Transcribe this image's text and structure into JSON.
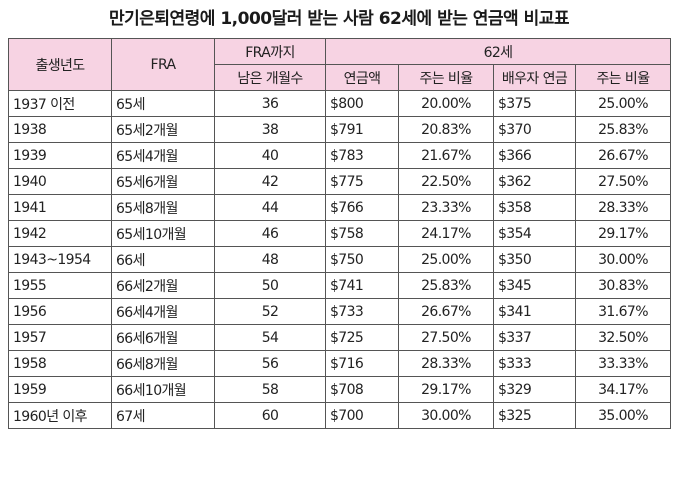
{
  "title": "만기은퇴연령에 1,000달러 받는 사람 62세에 받는 연금액 비교표",
  "header": {
    "birth_year": "출생년도",
    "fra": "FRA",
    "months_line1": "FRA까지",
    "months_line2": "남은 개월수",
    "age62": "62세",
    "pension": "연금액",
    "pension_ratio": "주는 비율",
    "spouse_pension": "배우자 연금",
    "spouse_ratio": "주는 비율"
  },
  "columns": [
    "출생년도",
    "FRA",
    "FRA까지 남은 개월수",
    "연금액",
    "주는 비율",
    "배우자 연금",
    "주는 비율"
  ],
  "rows": [
    {
      "year": "1937 이전",
      "fra": "65세",
      "months": "36",
      "pension": "$800",
      "ratio": "20.00%",
      "spouse": "$375",
      "spouse_ratio": "25.00%"
    },
    {
      "year": "1938",
      "fra": "65세2개월",
      "months": "38",
      "pension": "$791",
      "ratio": "20.83%",
      "spouse": "$370",
      "spouse_ratio": "25.83%"
    },
    {
      "year": "1939",
      "fra": "65세4개월",
      "months": "40",
      "pension": "$783",
      "ratio": "21.67%",
      "spouse": "$366",
      "spouse_ratio": "26.67%"
    },
    {
      "year": "1940",
      "fra": "65세6개월",
      "months": "42",
      "pension": "$775",
      "ratio": "22.50%",
      "spouse": "$362",
      "spouse_ratio": "27.50%"
    },
    {
      "year": "1941",
      "fra": "65세8개월",
      "months": "44",
      "pension": "$766",
      "ratio": "23.33%",
      "spouse": "$358",
      "spouse_ratio": "28.33%"
    },
    {
      "year": "1942",
      "fra": "65세10개월",
      "months": "46",
      "pension": "$758",
      "ratio": "24.17%",
      "spouse": "$354",
      "spouse_ratio": "29.17%"
    },
    {
      "year": "1943~1954",
      "fra": "66세",
      "months": "48",
      "pension": "$750",
      "ratio": "25.00%",
      "spouse": "$350",
      "spouse_ratio": "30.00%"
    },
    {
      "year": "1955",
      "fra": "66세2개월",
      "months": "50",
      "pension": "$741",
      "ratio": "25.83%",
      "spouse": "$345",
      "spouse_ratio": "30.83%"
    },
    {
      "year": "1956",
      "fra": "66세4개월",
      "months": "52",
      "pension": "$733",
      "ratio": "26.67%",
      "spouse": "$341",
      "spouse_ratio": "31.67%"
    },
    {
      "year": "1957",
      "fra": "66세6개월",
      "months": "54",
      "pension": "$725",
      "ratio": "27.50%",
      "spouse": "$337",
      "spouse_ratio": "32.50%"
    },
    {
      "year": "1958",
      "fra": "66세8개월",
      "months": "56",
      "pension": "$716",
      "ratio": "28.33%",
      "spouse": "$333",
      "spouse_ratio": "33.33%"
    },
    {
      "year": "1959",
      "fra": "66세10개월",
      "months": "58",
      "pension": "$708",
      "ratio": "29.17%",
      "spouse": "$329",
      "spouse_ratio": "34.17%"
    },
    {
      "year": "1960년 이후",
      "fra": "67세",
      "months": "60",
      "pension": "$700",
      "ratio": "30.00%",
      "spouse": "$325",
      "spouse_ratio": "35.00%"
    }
  ],
  "colors": {
    "header_bg": "#f7d3e3",
    "border": "#555555",
    "text": "#222222"
  }
}
